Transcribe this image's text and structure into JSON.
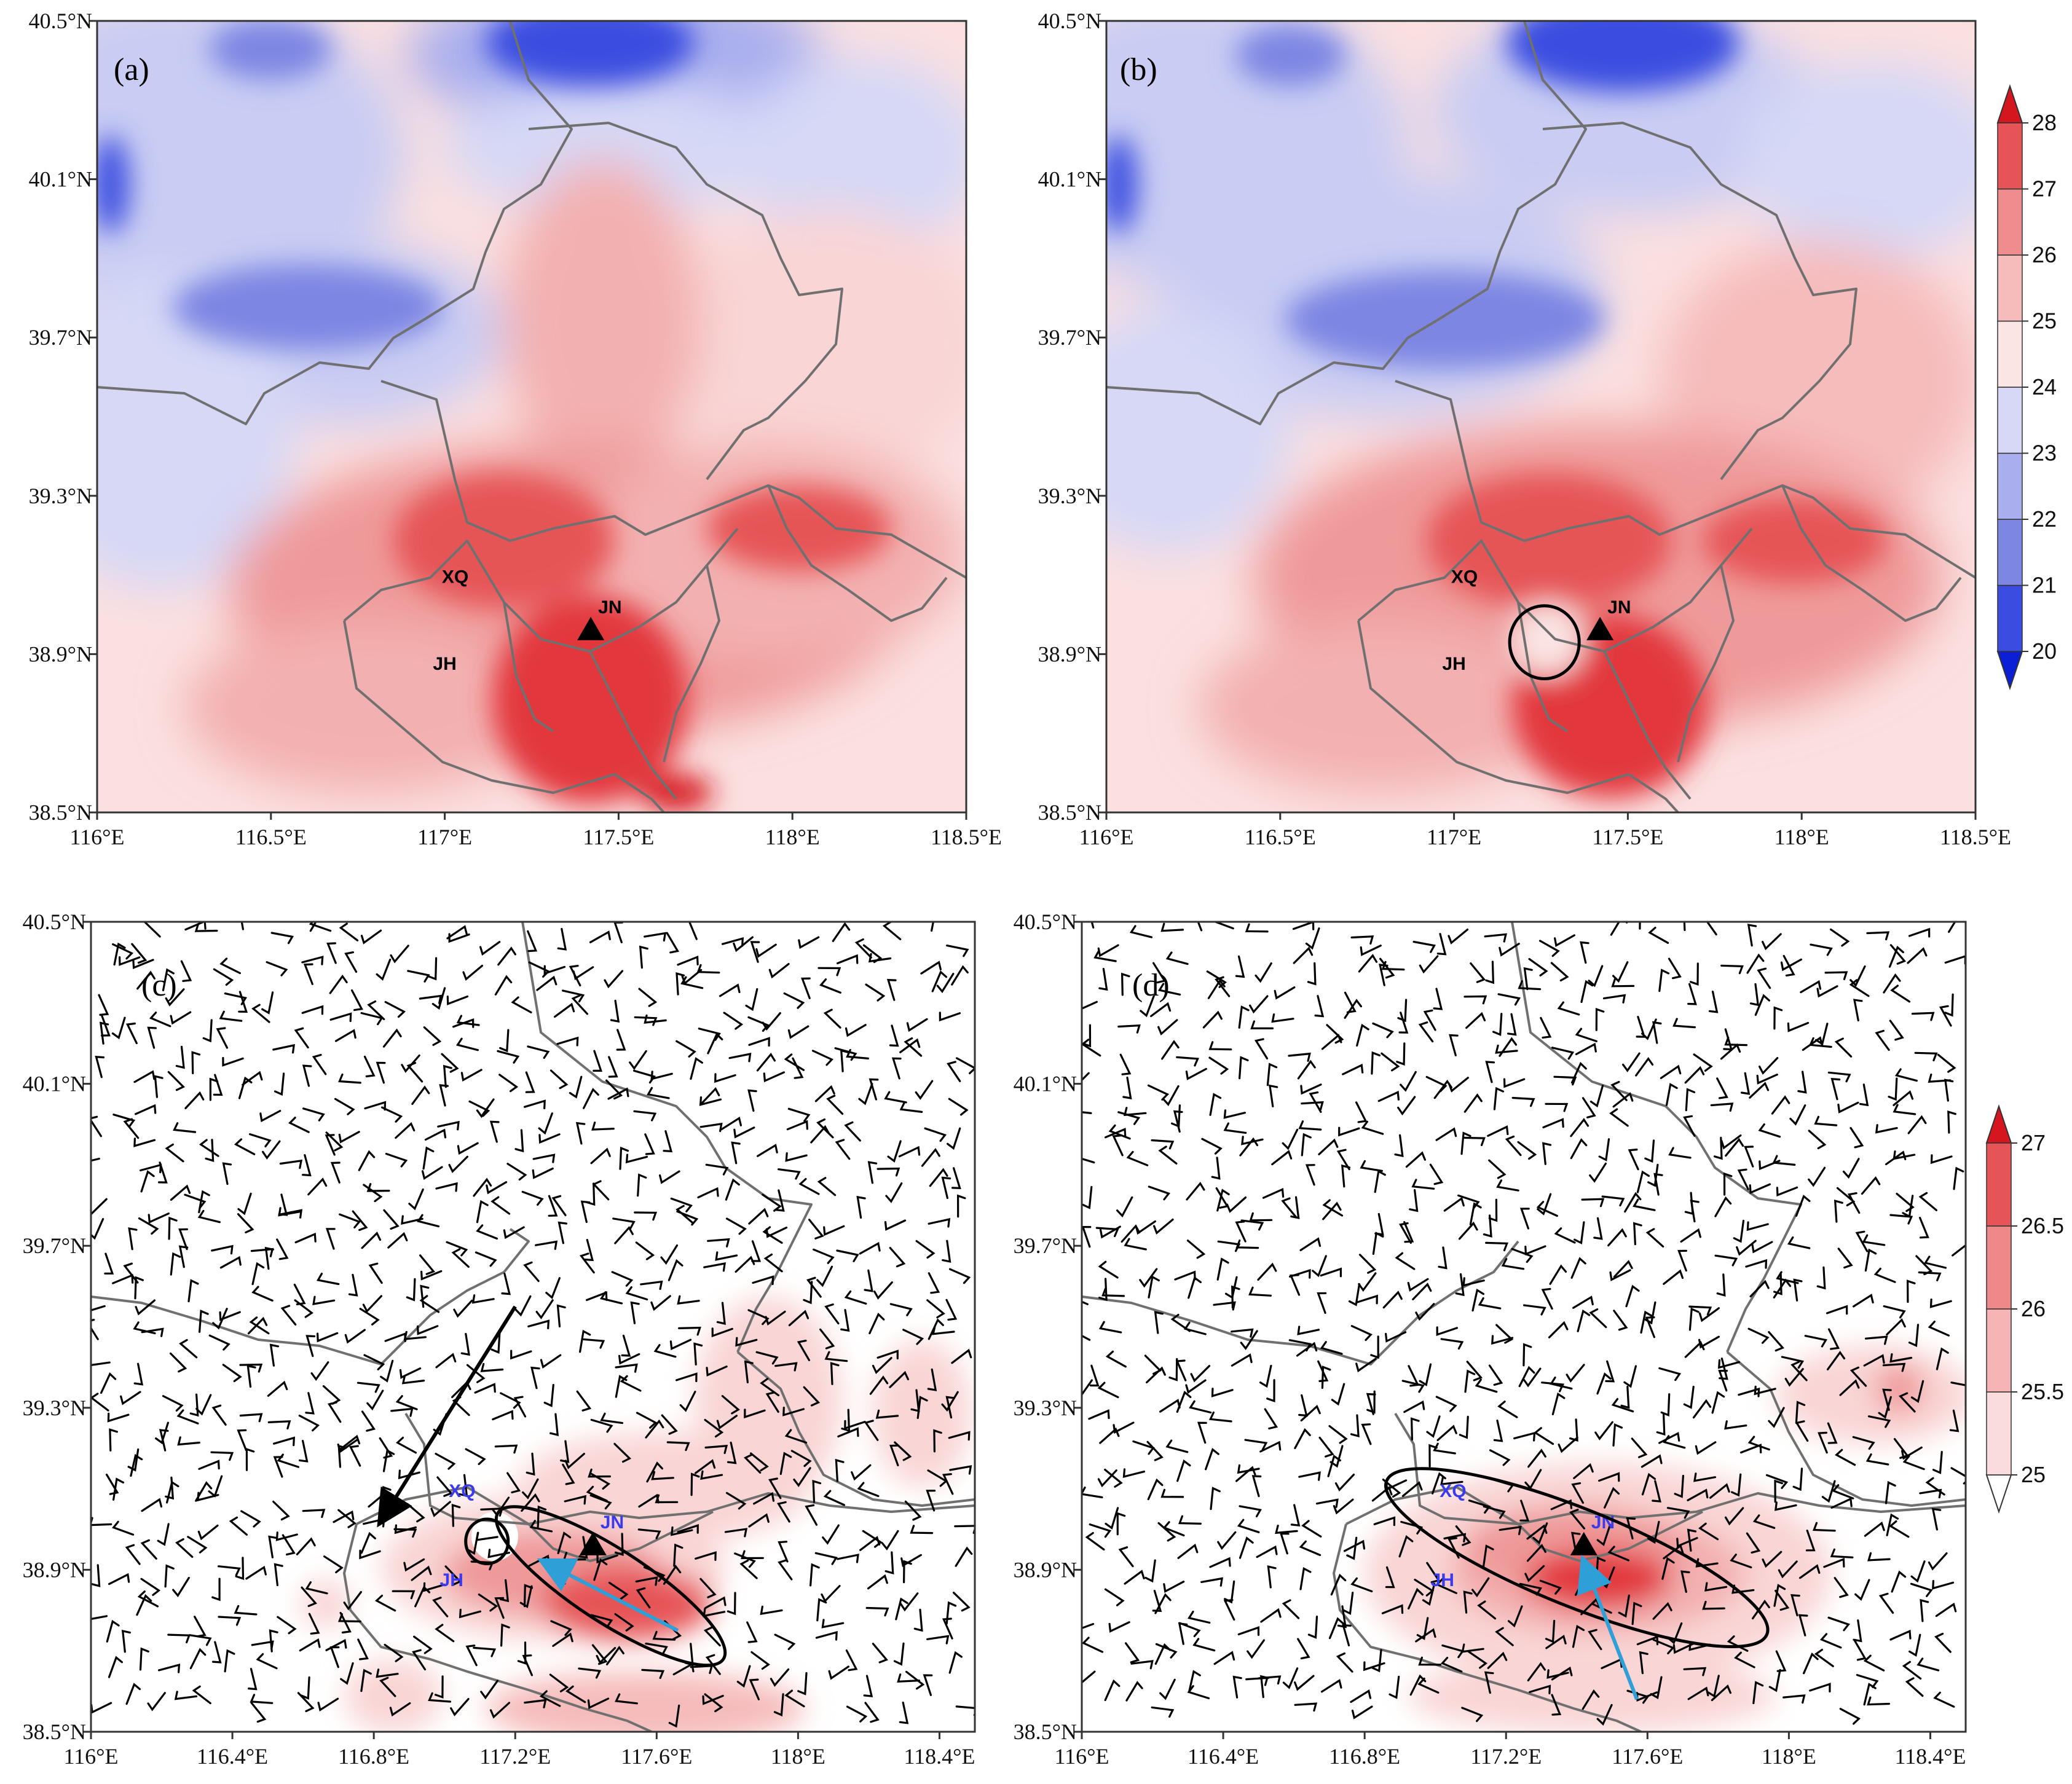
{
  "figure_caption_labels": {
    "a": "(a)",
    "b": "(b)",
    "c": "(c)",
    "d": "(d)"
  },
  "colors": {
    "cold_dark": "#0a1fd6",
    "cold_mid": "#7d86e3",
    "cold_light": "#c9ccf3",
    "warm_light": "#f9d5d5",
    "warm_mid": "#ef9a9a",
    "warm_dark": "#e2393d",
    "warm_deep": "#d6161e",
    "border": "#707070",
    "site_black": "#000000",
    "site_blue": "#3a3af0",
    "arrow_black": "#000000",
    "arrow_cyan": "#2f9fd8"
  },
  "chart_data": [
    {
      "panel": "a",
      "type": "heatmap",
      "title": "(a)",
      "variable": "temperature",
      "x_ticks": [
        "116°E",
        "116.5°E",
        "117°E",
        "117.5°E",
        "118°E",
        "118.5°E"
      ],
      "x_tick_values": [
        116,
        116.5,
        117,
        117.5,
        118,
        118.5
      ],
      "y_ticks": [
        "38.5°N",
        "38.9°N",
        "39.3°N",
        "39.7°N",
        "40.1°N",
        "40.5°N"
      ],
      "y_tick_values": [
        38.5,
        38.9,
        39.3,
        39.7,
        40.1,
        40.5
      ],
      "xlim": [
        116,
        118.5
      ],
      "ylim": [
        38.5,
        40.5
      ],
      "sites": [
        {
          "label": "XQ",
          "lon": 117.03,
          "lat": 39.08
        },
        {
          "label": "JN",
          "lon": 117.42,
          "lat": 38.96,
          "marker": "triangle"
        },
        {
          "label": "JH",
          "lon": 117.0,
          "lat": 38.86
        }
      ]
    },
    {
      "panel": "b",
      "type": "heatmap",
      "title": "(b)",
      "variable": "temperature",
      "x_ticks": [
        "116°E",
        "116.5°E",
        "117°E",
        "117.5°E",
        "118°E",
        "118.5°E"
      ],
      "x_tick_values": [
        116,
        116.5,
        117,
        117.5,
        118,
        118.5
      ],
      "y_ticks": [
        "38.5°N",
        "38.9°N",
        "39.3°N",
        "39.7°N",
        "40.1°N",
        "40.5°N"
      ],
      "y_tick_values": [
        38.5,
        38.9,
        39.3,
        39.7,
        40.1,
        40.5
      ],
      "xlim": [
        116,
        118.5
      ],
      "ylim": [
        38.5,
        40.5
      ],
      "sites": [
        {
          "label": "XQ",
          "lon": 117.03,
          "lat": 39.08
        },
        {
          "label": "JN",
          "lon": 117.42,
          "lat": 38.96,
          "marker": "triangle"
        },
        {
          "label": "JH",
          "lon": 117.0,
          "lat": 38.86
        }
      ],
      "annotations": [
        {
          "shape": "circle",
          "lon": 117.26,
          "lat": 38.93,
          "r_deg": 0.1
        }
      ],
      "colorbar": {
        "ticks": [
          "20",
          "21",
          "22",
          "23",
          "24",
          "25",
          "26",
          "27",
          "28"
        ],
        "values": [
          20,
          21,
          22,
          23,
          24,
          25,
          26,
          27,
          28
        ],
        "level_colors": [
          "#0a1fd6",
          "#3a4de0",
          "#7d86e3",
          "#a9aeee",
          "#d6d8f6",
          "#fbe4e4",
          "#f6bcbc",
          "#ef8c8e",
          "#e65457",
          "#d6161e"
        ],
        "extend": "both"
      }
    },
    {
      "panel": "c",
      "type": "heatmap",
      "title": "(c)",
      "variable": "temperature with wind barbs",
      "x_ticks": [
        "116°E",
        "116.4°E",
        "116.8°E",
        "117.2°E",
        "117.6°E",
        "118°E",
        "118.4°E"
      ],
      "x_tick_values": [
        116,
        116.4,
        116.8,
        117.2,
        117.6,
        118,
        118.4
      ],
      "y_ticks": [
        "38.5°N",
        "38.9°N",
        "39.3°N",
        "39.7°N",
        "40.1°N",
        "40.5°N"
      ],
      "y_tick_values": [
        38.5,
        38.9,
        39.3,
        39.7,
        40.1,
        40.5
      ],
      "xlim": [
        116,
        118.5
      ],
      "ylim": [
        38.5,
        40.5
      ],
      "sites": [
        {
          "label": "XQ",
          "lon": 117.05,
          "lat": 39.08
        },
        {
          "label": "JN",
          "lon": 117.42,
          "lat": 38.96,
          "marker": "triangle"
        },
        {
          "label": "JH",
          "lon": 117.02,
          "lat": 38.86
        }
      ],
      "annotations": [
        {
          "shape": "circle",
          "lon": 117.12,
          "lat": 38.97,
          "r_deg": 0.06
        },
        {
          "shape": "ellipse",
          "lon": 117.47,
          "lat": 38.86,
          "rx_deg": 0.38,
          "ry_deg": 0.09,
          "angle_deg": 33
        },
        {
          "shape": "arrow",
          "color": "black",
          "from": [
            117.2,
            39.55
          ],
          "to": [
            116.82,
            39.02
          ]
        },
        {
          "shape": "arrow",
          "color": "cyan",
          "from": [
            117.66,
            38.75
          ],
          "to": [
            117.28,
            38.92
          ]
        }
      ]
    },
    {
      "panel": "d",
      "type": "heatmap",
      "title": "(d)",
      "variable": "temperature with wind barbs",
      "x_ticks": [
        "116°E",
        "116.4°E",
        "116.8°E",
        "117.2°E",
        "117.6°E",
        "118°E",
        "118.4°E"
      ],
      "x_tick_values": [
        116,
        116.4,
        116.8,
        117.2,
        117.6,
        118,
        118.4
      ],
      "y_ticks": [
        "38.5°N",
        "38.9°N",
        "39.3°N",
        "39.7°N",
        "40.1°N",
        "40.5°N"
      ],
      "y_tick_values": [
        38.5,
        38.9,
        39.3,
        39.7,
        40.1,
        40.5
      ],
      "xlim": [
        116,
        118.5
      ],
      "ylim": [
        38.5,
        40.5
      ],
      "sites": [
        {
          "label": "XQ",
          "lon": 117.05,
          "lat": 39.08
        },
        {
          "label": "JN",
          "lon": 117.42,
          "lat": 38.96,
          "marker": "triangle"
        },
        {
          "label": "JH",
          "lon": 117.02,
          "lat": 38.86
        }
      ],
      "annotations": [
        {
          "shape": "ellipse",
          "lon": 117.4,
          "lat": 38.93,
          "rx_deg": 0.58,
          "ry_deg": 0.12,
          "angle_deg": 22
        },
        {
          "shape": "arrow",
          "color": "cyan",
          "from": [
            117.57,
            38.58
          ],
          "to": [
            117.42,
            38.92
          ]
        }
      ],
      "colorbar": {
        "ticks": [
          "25",
          "25.5",
          "26",
          "26.5",
          "27"
        ],
        "values": [
          25,
          25.5,
          26,
          26.5,
          27
        ],
        "level_colors": [
          "#ffffff",
          "#fbdcdc",
          "#f6b4b4",
          "#ef8888",
          "#e55456",
          "#d6161e"
        ],
        "extend": "both"
      }
    }
  ]
}
